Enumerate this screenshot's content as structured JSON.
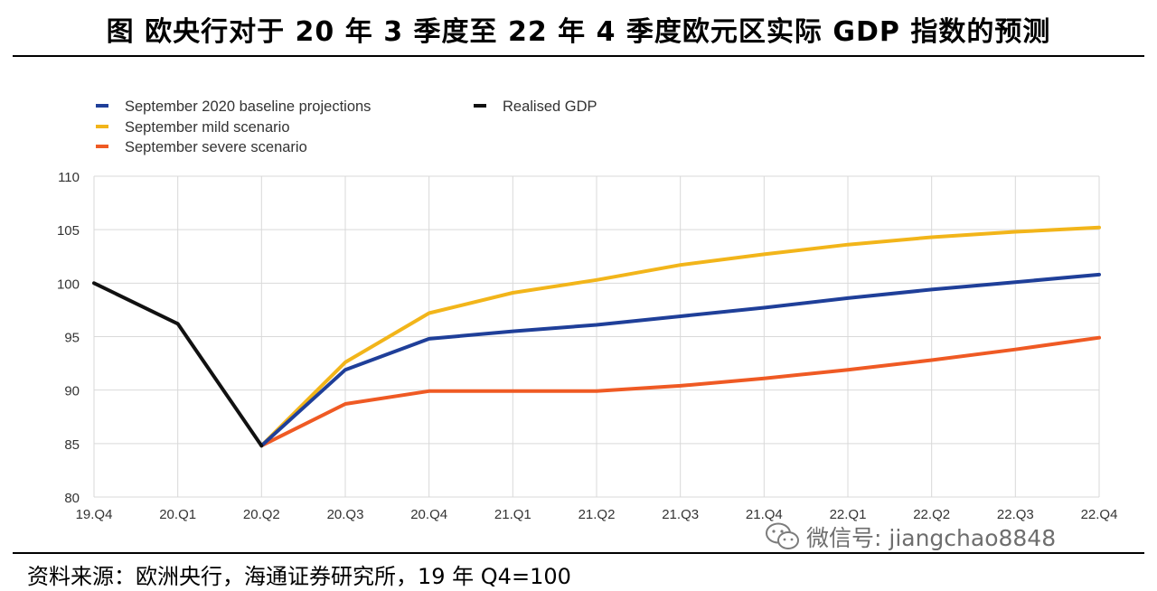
{
  "title": "图 欧央行对于 20 年 3 季度至 22 年 4 季度欧元区实际 GDP 指数的预测",
  "source": "资料来源：欧洲央行，海通证券研究所，19 年 Q4=100",
  "watermark": "微信号: jiangchao8848",
  "chart_data": {
    "type": "line",
    "categories": [
      "19.Q4",
      "20.Q1",
      "20.Q2",
      "20.Q3",
      "20.Q4",
      "21.Q1",
      "21.Q2",
      "21.Q3",
      "21.Q4",
      "22.Q1",
      "22.Q2",
      "22.Q3",
      "22.Q4"
    ],
    "ylim": [
      80,
      110
    ],
    "yticks": [
      80,
      85,
      90,
      95,
      100,
      105,
      110
    ],
    "grid": true,
    "legend_position": "top-left",
    "series": [
      {
        "name": "September 2020 baseline projections",
        "color": "#1f3f99",
        "values": [
          null,
          null,
          84.8,
          91.9,
          94.8,
          95.5,
          96.1,
          96.9,
          97.7,
          98.6,
          99.4,
          100.1,
          100.8
        ]
      },
      {
        "name": "Realised GDP",
        "color": "#111111",
        "values": [
          100.0,
          96.2,
          84.8,
          null,
          null,
          null,
          null,
          null,
          null,
          null,
          null,
          null,
          null
        ]
      },
      {
        "name": "September mild scenario",
        "color": "#f2b51a",
        "values": [
          null,
          null,
          84.8,
          92.6,
          97.2,
          99.1,
          100.3,
          101.7,
          102.7,
          103.6,
          104.3,
          104.8,
          105.2
        ]
      },
      {
        "name": "September severe scenario",
        "color": "#ef5a24",
        "values": [
          null,
          null,
          84.8,
          88.7,
          89.9,
          89.9,
          89.9,
          90.4,
          91.1,
          91.9,
          92.8,
          93.8,
          94.9
        ]
      }
    ]
  }
}
